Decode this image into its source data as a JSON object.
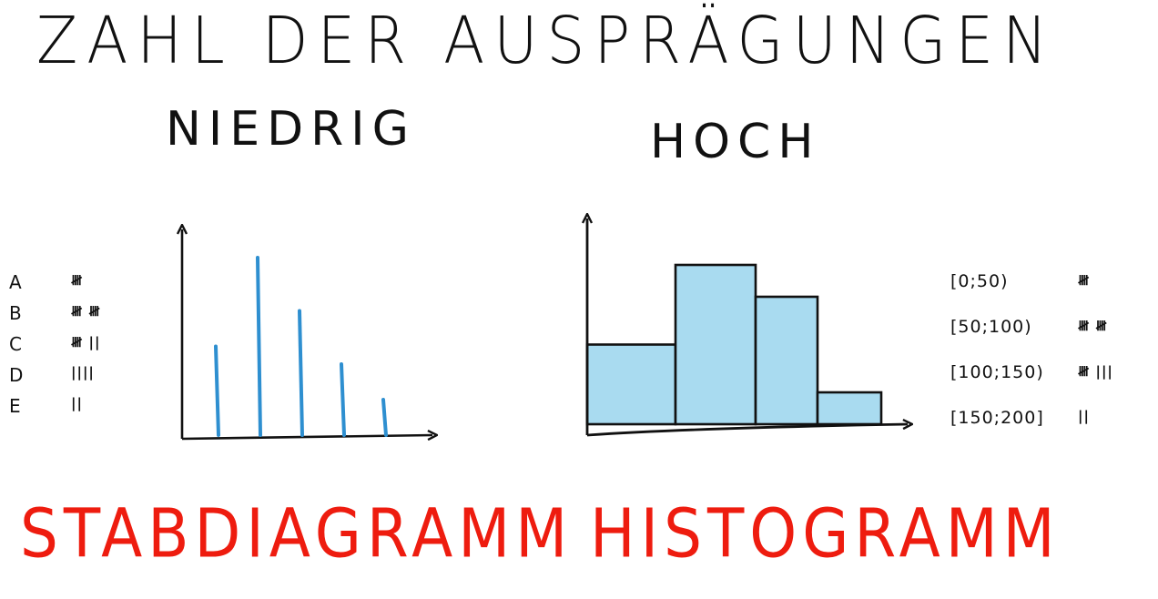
{
  "title": "ZAHL DER AUSPRÄGUNGEN",
  "sections": {
    "low": {
      "label": "NIEDRIG",
      "caption": "STABDIAGRAMM"
    },
    "high": {
      "label": "HOCH",
      "caption": "HISTOGRAMM"
    }
  },
  "left_tally": [
    {
      "key": "A",
      "tally": "𝍸",
      "count": 5
    },
    {
      "key": "B",
      "tally": "𝍸 𝍸",
      "count": 10
    },
    {
      "key": "C",
      "tally": "𝍸 ||",
      "count": 7
    },
    {
      "key": "D",
      "tally": "||||",
      "count": 4
    },
    {
      "key": "E",
      "tally": "||",
      "count": 2
    }
  ],
  "right_tally": [
    {
      "key": "[0;50)",
      "tally": "𝍸",
      "count": 5
    },
    {
      "key": "[50;100)",
      "tally": "𝍸 𝍸",
      "count": 10
    },
    {
      "key": "[100;150)",
      "tally": "𝍸 |||",
      "count": 8
    },
    {
      "key": "[150;200]",
      "tally": "||",
      "count": 2
    }
  ],
  "chart_data": [
    {
      "type": "bar",
      "categories": [
        "A",
        "B",
        "C",
        "D",
        "E"
      ],
      "values": [
        5,
        10,
        7,
        4,
        2
      ],
      "ylim": [
        0,
        12
      ],
      "grid": false,
      "bar_color": "#2e8fd0",
      "axis_color": "#111111"
    },
    {
      "type": "bar",
      "categories": [
        "[0;50)",
        "[50;100)",
        "[100;150)",
        "[150;200]"
      ],
      "values": [
        5,
        10,
        8,
        2
      ],
      "bin_edges": [
        0,
        50,
        100,
        150,
        200
      ],
      "ylim": [
        0,
        12
      ],
      "grid": false,
      "bar_color": "#a9dbf0",
      "edge_color": "#111111",
      "axis_color": "#111111"
    }
  ]
}
